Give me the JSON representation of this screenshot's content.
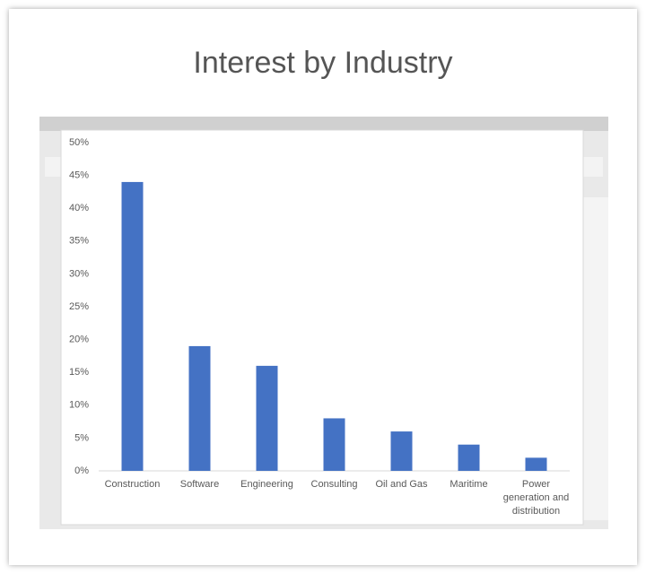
{
  "chart_data": {
    "type": "bar",
    "title": "Interest by Industry",
    "categories": [
      "Construction",
      "Software",
      "Engineering",
      "Consulting",
      "Oil and Gas",
      "Maritime",
      "Power generation and distribution"
    ],
    "values": [
      44,
      19,
      16,
      8,
      6,
      4,
      2
    ],
    "color": "#4472c4",
    "ylim": [
      0,
      50
    ],
    "yticks": [
      {
        "value": 0,
        "label": "0%"
      },
      {
        "value": 5,
        "label": "5%"
      },
      {
        "value": 10,
        "label": "10%"
      },
      {
        "value": 15,
        "label": "15%"
      },
      {
        "value": 20,
        "label": "20%"
      },
      {
        "value": 25,
        "label": "25%"
      },
      {
        "value": 30,
        "label": "30%"
      },
      {
        "value": 35,
        "label": "35%"
      },
      {
        "value": 40,
        "label": "40%"
      },
      {
        "value": 45,
        "label": "45%"
      },
      {
        "value": 50,
        "label": "50%"
      }
    ],
    "grid": false
  }
}
